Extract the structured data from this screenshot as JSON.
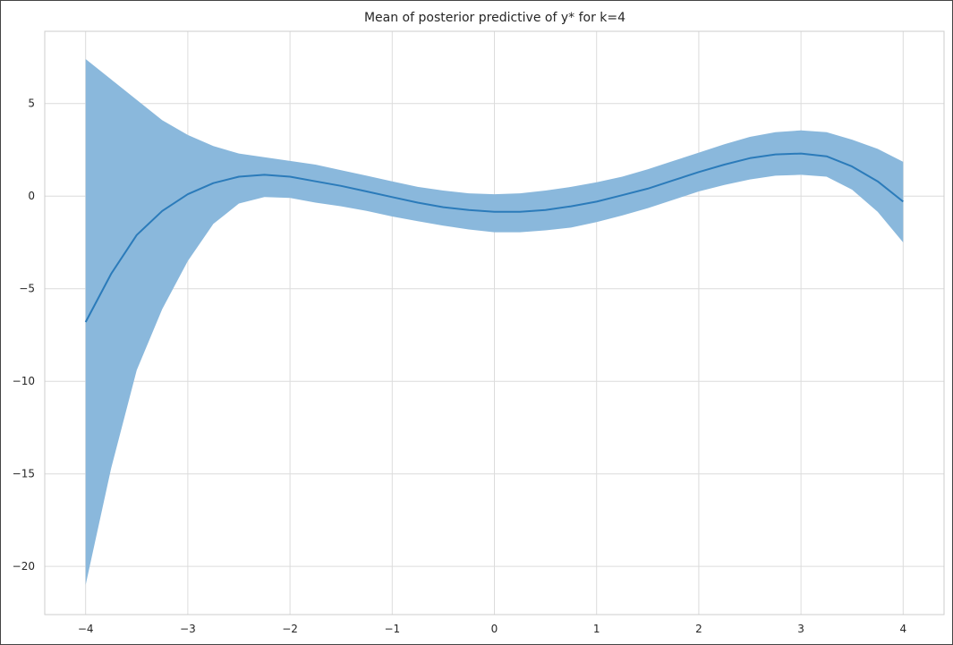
{
  "chart_data": {
    "type": "area",
    "title": "Mean of posterior predictive of y* for k=4",
    "xlabel": "",
    "ylabel": "",
    "xlim": [
      -4.4,
      4.4
    ],
    "ylim": [
      -22.6,
      8.9
    ],
    "xticks": [
      -4,
      -3,
      -2,
      -1,
      0,
      1,
      2,
      3,
      4
    ],
    "yticks": [
      5,
      0,
      -5,
      -10,
      -15,
      -20
    ],
    "xtick_labels": [
      "−4",
      "−3",
      "−2",
      "−1",
      "0",
      "1",
      "2",
      "3",
      "4"
    ],
    "ytick_labels": [
      "5",
      "0",
      "−5",
      "−10",
      "−15",
      "−20"
    ],
    "grid": true,
    "legend": "none",
    "series": [
      {
        "kind": "line",
        "color": "#2b7bba",
        "x": [
          -4,
          -3.75,
          -3.5,
          -3.25,
          -3,
          -2.75,
          -2.5,
          -2.25,
          -2,
          -1.75,
          -1.5,
          -1.25,
          -1,
          -0.75,
          -0.5,
          -0.25,
          0,
          0.25,
          0.5,
          0.75,
          1,
          1.25,
          1.5,
          1.75,
          2,
          2.25,
          2.5,
          2.75,
          3,
          3.25,
          3.5,
          3.75,
          4
        ],
        "y": [
          -6.8,
          -4.2,
          -2.1,
          -0.8,
          0.1,
          0.7,
          1.05,
          1.15,
          1.05,
          0.8,
          0.55,
          0.25,
          -0.05,
          -0.35,
          -0.6,
          -0.75,
          -0.85,
          -0.85,
          -0.75,
          -0.55,
          -0.3,
          0.05,
          0.4,
          0.85,
          1.3,
          1.7,
          2.05,
          2.25,
          2.3,
          2.15,
          1.6,
          0.8,
          -0.3
        ]
      },
      {
        "kind": "band",
        "color": "#8ab8dc",
        "x": [
          -4,
          -3.75,
          -3.5,
          -3.25,
          -3,
          -2.75,
          -2.5,
          -2.25,
          -2,
          -1.75,
          -1.5,
          -1.25,
          -1,
          -0.75,
          -0.5,
          -0.25,
          0,
          0.25,
          0.5,
          0.75,
          1,
          1.25,
          1.5,
          1.75,
          2,
          2.25,
          2.5,
          2.75,
          3,
          3.25,
          3.5,
          3.75,
          4
        ],
        "upper": [
          7.4,
          6.3,
          5.2,
          4.1,
          3.3,
          2.7,
          2.3,
          2.1,
          1.9,
          1.7,
          1.4,
          1.1,
          0.8,
          0.5,
          0.3,
          0.15,
          0.1,
          0.15,
          0.3,
          0.5,
          0.75,
          1.05,
          1.45,
          1.9,
          2.35,
          2.8,
          3.2,
          3.45,
          3.55,
          3.45,
          3.05,
          2.55,
          1.85
        ],
        "lower": [
          -21.0,
          -14.7,
          -9.4,
          -6.1,
          -3.5,
          -1.5,
          -0.4,
          -0.05,
          -0.1,
          -0.35,
          -0.55,
          -0.8,
          -1.1,
          -1.35,
          -1.6,
          -1.8,
          -1.95,
          -1.95,
          -1.85,
          -1.7,
          -1.4,
          -1.05,
          -0.65,
          -0.2,
          0.25,
          0.6,
          0.9,
          1.1,
          1.15,
          1.05,
          0.35,
          -0.85,
          -2.5
        ]
      }
    ]
  }
}
